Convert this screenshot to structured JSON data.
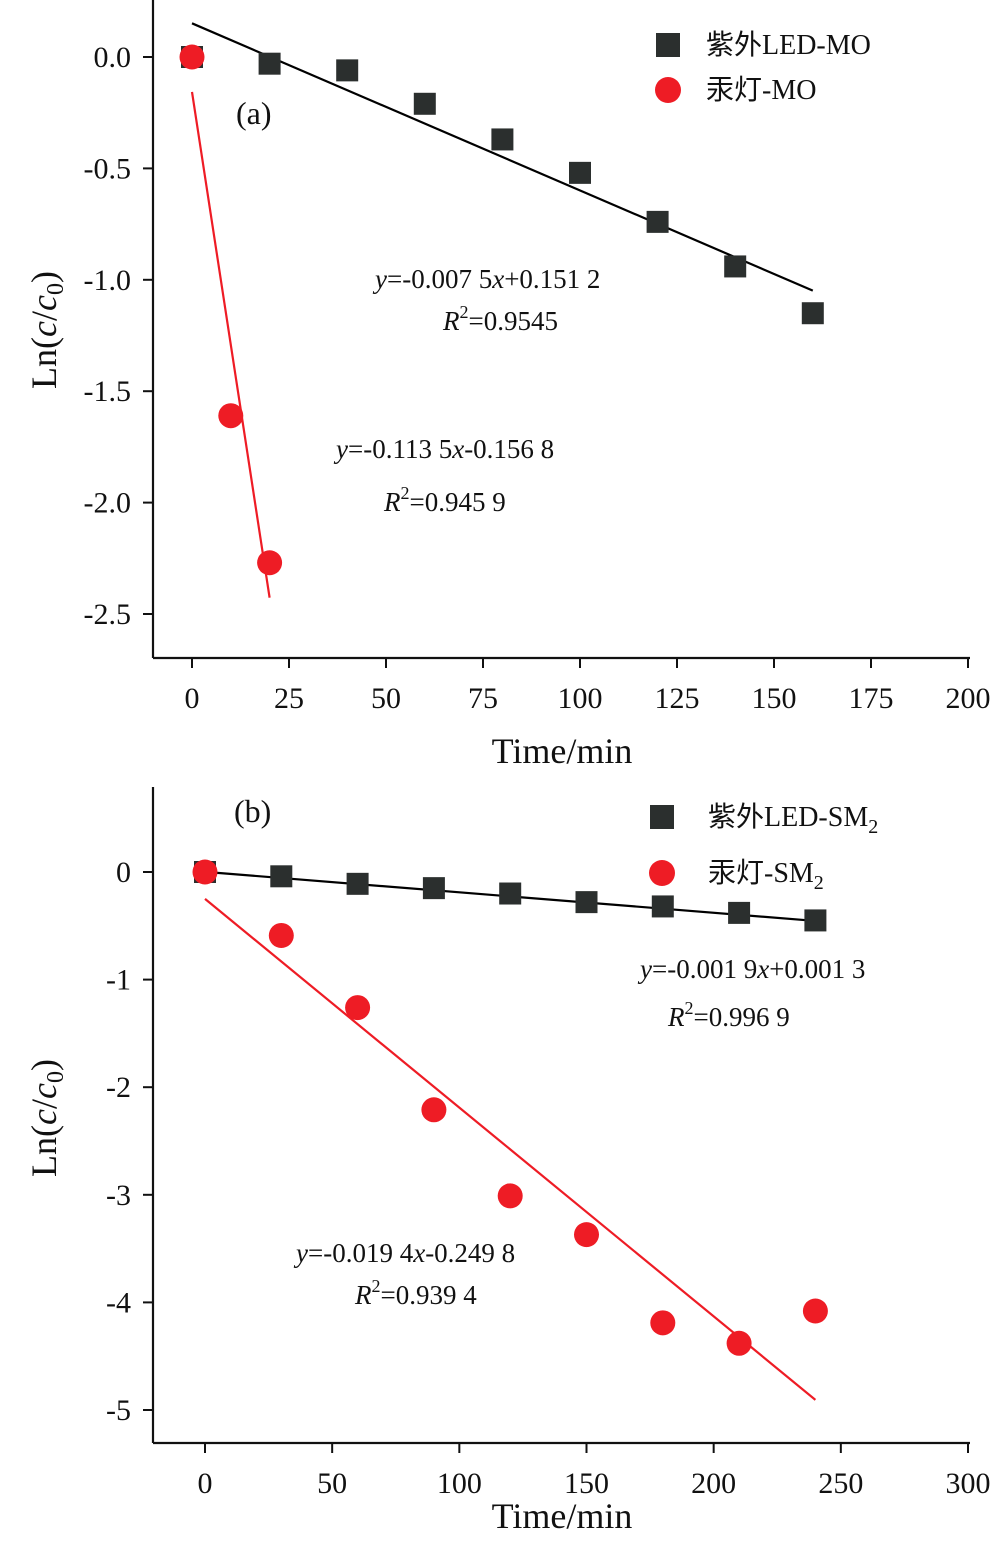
{
  "chart_data": [
    {
      "type": "scatter",
      "panel_label": "(a)",
      "xlabel": "Time/min",
      "ylabel": {
        "prefix": "Ln(",
        "c1": "c",
        "sep": "/",
        "c2": "c",
        "sub": "0",
        "suffix": ")"
      },
      "xlim": [
        -10,
        200
      ],
      "ylim": [
        -2.7,
        0.25
      ],
      "xticks": [
        0,
        25,
        50,
        75,
        100,
        125,
        150,
        175,
        200
      ],
      "xtick_labels": [
        "0",
        "25",
        "50",
        "75",
        "100",
        "125",
        "150",
        "175",
        "200"
      ],
      "yticks": [
        0.0,
        -0.5,
        -1.0,
        -1.5,
        -2.0,
        -2.5
      ],
      "ytick_labels": [
        "0.0",
        "-0.5",
        "-1.0",
        "-1.5",
        "-2.0",
        "-2.5"
      ],
      "legend_position": "top-right",
      "series": [
        {
          "name": "紫外LED-MO",
          "marker": "square",
          "color": "#2b2f2e",
          "line_color": "#000000",
          "x": [
            0,
            20,
            40,
            60,
            80,
            100,
            120,
            140,
            160
          ],
          "y": [
            0.0,
            -0.03,
            -0.06,
            -0.21,
            -0.37,
            -0.52,
            -0.74,
            -0.94,
            -1.15
          ],
          "fit": {
            "slope": -0.0075,
            "intercept": 0.1512,
            "x_range": [
              0,
              160
            ]
          },
          "equation": {
            "y_var": "y",
            "text1": "=-0.007 5",
            "x_var": "x",
            "text2": "+0.151 2"
          },
          "r2": {
            "r": "R",
            "sup": "2",
            "text": "=0.9545"
          }
        },
        {
          "name": "汞灯-MO",
          "marker": "circle",
          "color": "#ee1c25",
          "line_color": "#ee1c25",
          "x": [
            0,
            10,
            20
          ],
          "y": [
            0.0,
            -1.61,
            -2.27
          ],
          "fit": {
            "slope": -0.1135,
            "intercept": -0.1568,
            "x_range": [
              0,
              20
            ]
          },
          "equation": {
            "y_var": "y",
            "text1": "=-0.113 5",
            "x_var": "x",
            "text2": "-0.156 8"
          },
          "r2": {
            "r": "R",
            "sup": "2",
            "text": "=0.945 9"
          }
        }
      ]
    },
    {
      "type": "scatter",
      "panel_label": "(b)",
      "xlabel": "Time/min",
      "ylabel": {
        "prefix": "Ln(",
        "c1": "c",
        "sep": "/",
        "c2": "c",
        "sub": "0",
        "suffix": ")"
      },
      "xlim": [
        -20,
        300
      ],
      "ylim": [
        -5.3,
        0.8
      ],
      "xticks": [
        0,
        50,
        100,
        150,
        200,
        250,
        300
      ],
      "xtick_labels": [
        "0",
        "50",
        "100",
        "150",
        "200",
        "250",
        "300"
      ],
      "yticks": [
        0,
        -1,
        -2,
        -3,
        -4,
        -5
      ],
      "ytick_labels": [
        "0",
        "-1",
        "-2",
        "-3",
        "-4",
        "-5"
      ],
      "legend_position": "top-right",
      "series": [
        {
          "name": "紫外LED-SM",
          "name_sub": "2",
          "marker": "square",
          "color": "#2b2f2e",
          "line_color": "#000000",
          "x": [
            0,
            30,
            60,
            90,
            120,
            150,
            180,
            210,
            240
          ],
          "y": [
            0.0,
            -0.04,
            -0.11,
            -0.15,
            -0.2,
            -0.28,
            -0.32,
            -0.38,
            -0.45
          ],
          "fit": {
            "slope": -0.0019,
            "intercept": 0.0013,
            "x_range": [
              0,
              240
            ]
          },
          "equation": {
            "y_var": "y",
            "text1": "=-0.001 9",
            "x_var": "x",
            "text2": "+0.001 3"
          },
          "r2": {
            "r": "R",
            "sup": "2",
            "text": "=0.996 9"
          }
        },
        {
          "name": "汞灯-SM",
          "name_sub": "2",
          "marker": "circle",
          "color": "#ee1c25",
          "line_color": "#ee1c25",
          "x": [
            0,
            30,
            60,
            90,
            120,
            150,
            180,
            210,
            240
          ],
          "y": [
            0.0,
            -0.59,
            -1.26,
            -2.21,
            -3.01,
            -3.37,
            -4.19,
            -4.38,
            -4.08
          ],
          "fit": {
            "slope": -0.0194,
            "intercept": -0.2498,
            "x_range": [
              0,
              240
            ]
          },
          "equation": {
            "y_var": "y",
            "text1": "=-0.019 4",
            "x_var": "x",
            "text2": "-0.249 8"
          },
          "r2": {
            "r": "R",
            "sup": "2",
            "text": "=0.939 4"
          }
        }
      ]
    }
  ]
}
